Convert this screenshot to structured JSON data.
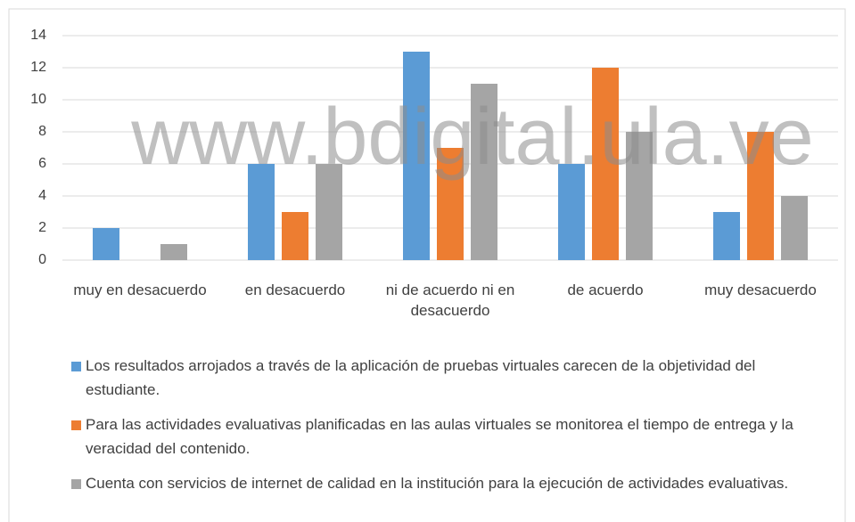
{
  "chart_data": {
    "type": "bar",
    "watermark": "www.bdigital.ula.ve",
    "categories": [
      "muy en desacuerdo",
      "en desacuerdo",
      "ni de acuerdo ni en desacuerdo",
      "de acuerdo",
      "muy desacuerdo"
    ],
    "series": [
      {
        "name": "Los resultados arrojados a través de la aplicación de pruebas virtuales carecen de la objetividad del estudiante.",
        "color": "#5b9bd5",
        "values": [
          2,
          6,
          13,
          6,
          3
        ]
      },
      {
        "name": "Para las actividades evaluativas planificadas en las aulas virtuales se monitorea el tiempo de entrega y la veracidad del contenido.",
        "color": "#ed7d31",
        "values": [
          0,
          3,
          7,
          12,
          8
        ]
      },
      {
        "name": "Cuenta con servicios de internet de calidad en la institución  para la ejecución de actividades evaluativas.",
        "color": "#a5a5a5",
        "values": [
          1,
          6,
          11,
          8,
          4
        ]
      }
    ],
    "ylim": [
      0,
      14
    ],
    "yticks": [
      0,
      2,
      4,
      6,
      8,
      10,
      12,
      14
    ],
    "grid": true,
    "legend": "bottom"
  }
}
